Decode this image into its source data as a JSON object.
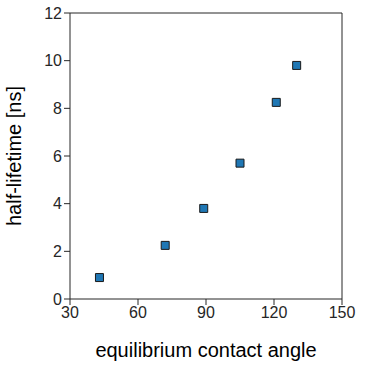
{
  "chart_data": {
    "type": "scatter",
    "x_label": "equilibrium contact angle",
    "y_label": "half-lifetime [ns]",
    "x": [
      43,
      72,
      89,
      105,
      121,
      130
    ],
    "values": [
      0.9,
      2.25,
      3.8,
      5.7,
      8.25,
      9.8
    ],
    "color": "#1f77b4",
    "marker": "square",
    "xlim": [
      30,
      150
    ],
    "xticks": [
      30,
      60,
      90,
      120,
      150
    ],
    "ylim": [
      0,
      12
    ],
    "yticks": [
      0,
      2,
      4,
      6,
      8,
      10,
      12
    ]
  }
}
